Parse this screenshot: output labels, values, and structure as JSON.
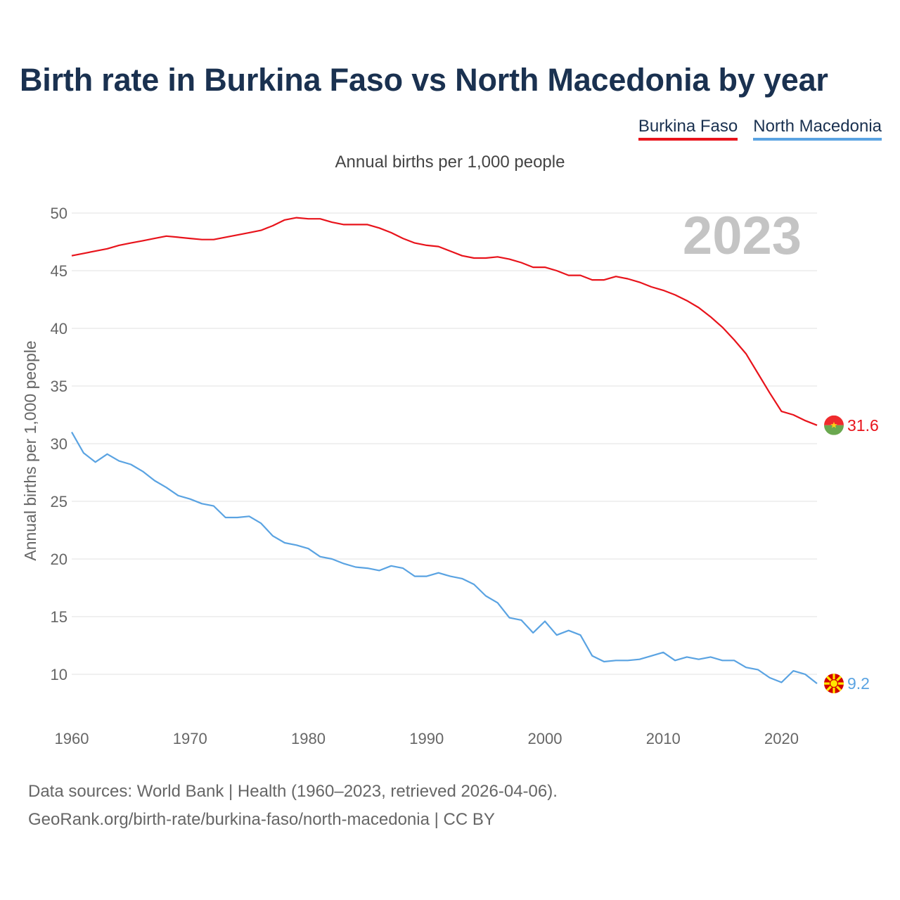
{
  "header": {
    "title": "Birth rate in Burkina Faso vs North Macedonia by year",
    "subtitle": "Annual births per 1,000 people"
  },
  "legend": {
    "items": [
      {
        "label": "Burkina Faso",
        "color": "#e8131b"
      },
      {
        "label": "North Macedonia",
        "color": "#5aa3e2"
      }
    ]
  },
  "overlay": {
    "year": "2023"
  },
  "footer": {
    "line1": "Data sources: World Bank | Health (1960–2023, retrieved 2026-04-06).",
    "line2": "GeoRank.org/birth-rate/burkina-faso/north-macedonia | CC BY"
  },
  "chart_data": {
    "type": "line",
    "title": "Birth rate in Burkina Faso vs North Macedonia by year",
    "subtitle": "Annual births per 1,000 people",
    "xlabel": "",
    "ylabel": "Annual births per 1,000 people",
    "xlim": [
      1960,
      2023
    ],
    "ylim": [
      6.5,
      51.5
    ],
    "xticks": [
      1960,
      1970,
      1980,
      1990,
      2000,
      2010,
      2020
    ],
    "yticks": [
      10,
      15,
      20,
      25,
      30,
      35,
      40,
      45,
      50
    ],
    "grid": true,
    "legend_position": "top-right",
    "series": [
      {
        "name": "Burkina Faso",
        "color": "#e8131b",
        "end_label": "31.6",
        "values": [
          [
            1960,
            46.3
          ],
          [
            1961,
            46.5
          ],
          [
            1962,
            46.7
          ],
          [
            1963,
            46.9
          ],
          [
            1964,
            47.2
          ],
          [
            1965,
            47.4
          ],
          [
            1966,
            47.6
          ],
          [
            1967,
            47.8
          ],
          [
            1968,
            48.0
          ],
          [
            1969,
            47.9
          ],
          [
            1970,
            47.8
          ],
          [
            1971,
            47.7
          ],
          [
            1972,
            47.7
          ],
          [
            1973,
            47.9
          ],
          [
            1974,
            48.1
          ],
          [
            1975,
            48.3
          ],
          [
            1976,
            48.5
          ],
          [
            1977,
            48.9
          ],
          [
            1978,
            49.4
          ],
          [
            1979,
            49.6
          ],
          [
            1980,
            49.5
          ],
          [
            1981,
            49.5
          ],
          [
            1982,
            49.2
          ],
          [
            1983,
            49.0
          ],
          [
            1984,
            49.0
          ],
          [
            1985,
            49.0
          ],
          [
            1986,
            48.7
          ],
          [
            1987,
            48.3
          ],
          [
            1988,
            47.8
          ],
          [
            1989,
            47.4
          ],
          [
            1990,
            47.2
          ],
          [
            1991,
            47.1
          ],
          [
            1992,
            46.7
          ],
          [
            1993,
            46.3
          ],
          [
            1994,
            46.1
          ],
          [
            1995,
            46.1
          ],
          [
            1996,
            46.2
          ],
          [
            1997,
            46.0
          ],
          [
            1998,
            45.7
          ],
          [
            1999,
            45.3
          ],
          [
            2000,
            45.3
          ],
          [
            2001,
            45.0
          ],
          [
            2002,
            44.6
          ],
          [
            2003,
            44.6
          ],
          [
            2004,
            44.2
          ],
          [
            2005,
            44.2
          ],
          [
            2006,
            44.5
          ],
          [
            2007,
            44.3
          ],
          [
            2008,
            44.0
          ],
          [
            2009,
            43.6
          ],
          [
            2010,
            43.3
          ],
          [
            2011,
            42.9
          ],
          [
            2012,
            42.4
          ],
          [
            2013,
            41.8
          ],
          [
            2014,
            41.0
          ],
          [
            2015,
            40.1
          ],
          [
            2016,
            39.0
          ],
          [
            2017,
            37.8
          ],
          [
            2018,
            36.1
          ],
          [
            2019,
            34.4
          ],
          [
            2020,
            32.8
          ],
          [
            2021,
            32.5
          ],
          [
            2022,
            32.0
          ],
          [
            2023,
            31.6
          ]
        ]
      },
      {
        "name": "North Macedonia",
        "color": "#5aa3e2",
        "end_label": "9.2",
        "values": [
          [
            1960,
            31.0
          ],
          [
            1961,
            29.2
          ],
          [
            1962,
            28.4
          ],
          [
            1963,
            29.1
          ],
          [
            1964,
            28.5
          ],
          [
            1965,
            28.2
          ],
          [
            1966,
            27.6
          ],
          [
            1967,
            26.8
          ],
          [
            1968,
            26.2
          ],
          [
            1969,
            25.5
          ],
          [
            1970,
            25.2
          ],
          [
            1971,
            24.8
          ],
          [
            1972,
            24.6
          ],
          [
            1973,
            23.6
          ],
          [
            1974,
            23.6
          ],
          [
            1975,
            23.7
          ],
          [
            1976,
            23.1
          ],
          [
            1977,
            22.0
          ],
          [
            1978,
            21.4
          ],
          [
            1979,
            21.2
          ],
          [
            1980,
            20.9
          ],
          [
            1981,
            20.2
          ],
          [
            1982,
            20.0
          ],
          [
            1983,
            19.6
          ],
          [
            1984,
            19.3
          ],
          [
            1985,
            19.2
          ],
          [
            1986,
            19.0
          ],
          [
            1987,
            19.4
          ],
          [
            1988,
            19.2
          ],
          [
            1989,
            18.5
          ],
          [
            1990,
            18.5
          ],
          [
            1991,
            18.8
          ],
          [
            1992,
            18.5
          ],
          [
            1993,
            18.3
          ],
          [
            1994,
            17.8
          ],
          [
            1995,
            16.8
          ],
          [
            1996,
            16.2
          ],
          [
            1997,
            14.9
          ],
          [
            1998,
            14.7
          ],
          [
            1999,
            13.6
          ],
          [
            2000,
            14.6
          ],
          [
            2001,
            13.4
          ],
          [
            2002,
            13.8
          ],
          [
            2003,
            13.4
          ],
          [
            2004,
            11.6
          ],
          [
            2005,
            11.1
          ],
          [
            2006,
            11.2
          ],
          [
            2007,
            11.2
          ],
          [
            2008,
            11.3
          ],
          [
            2009,
            11.6
          ],
          [
            2010,
            11.9
          ],
          [
            2011,
            11.2
          ],
          [
            2012,
            11.5
          ],
          [
            2013,
            11.3
          ],
          [
            2014,
            11.5
          ],
          [
            2015,
            11.2
          ],
          [
            2016,
            11.2
          ],
          [
            2017,
            10.6
          ],
          [
            2018,
            10.4
          ],
          [
            2019,
            9.7
          ],
          [
            2020,
            9.3
          ],
          [
            2021,
            10.3
          ],
          [
            2022,
            10.0
          ],
          [
            2023,
            9.2
          ]
        ]
      }
    ]
  }
}
